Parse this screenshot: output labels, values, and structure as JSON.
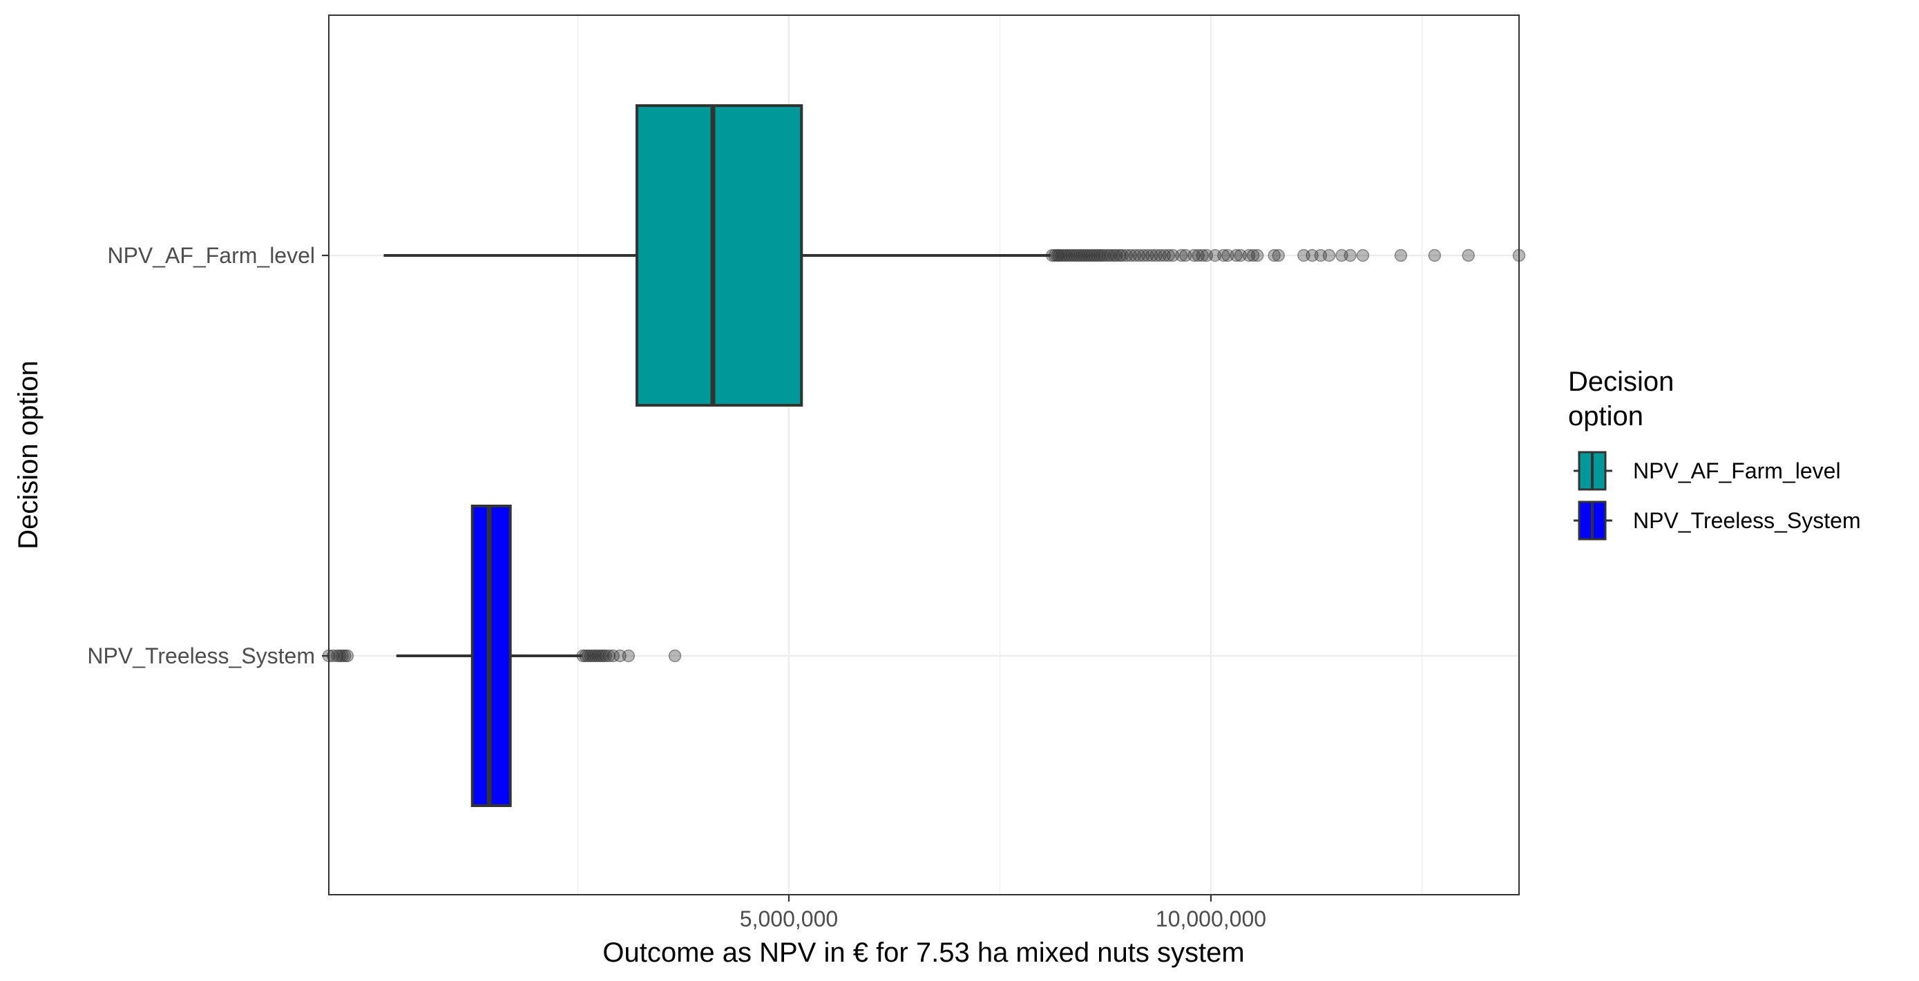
{
  "chart_data": {
    "type": "boxplot",
    "orientation": "horizontal",
    "xlabel": "Outcome as NPV in € for 7.53 ha mixed nuts system",
    "ylabel": "Decision option",
    "xlim": [
      -450000,
      13650000
    ],
    "x_ticks": [
      5000000,
      10000000
    ],
    "x_tick_labels": [
      "5,000,000",
      "10,000,000"
    ],
    "grid": true,
    "legend": {
      "title": "Decision option",
      "title_lines": [
        "Decision",
        "option"
      ],
      "position": "right",
      "entries": [
        {
          "label": "NPV_AF_Farm_level",
          "color": "#009999"
        },
        {
          "label": "NPV_Treeless_System",
          "color": "#0000FF"
        }
      ]
    },
    "categories": [
      "NPV_AF_Farm_level",
      "NPV_Treeless_System"
    ],
    "series": [
      {
        "name": "NPV_AF_Farm_level",
        "color": "#009999",
        "whisker_low": 200000,
        "q1": 3200000,
        "median": 4100000,
        "q3": 5150000,
        "whisker_high": 8100000,
        "outliers": [
          8120000,
          8150000,
          8180000,
          8200000,
          8230000,
          8260000,
          8290000,
          8320000,
          8350000,
          8380000,
          8410000,
          8440000,
          8470000,
          8500000,
          8530000,
          8560000,
          8590000,
          8620000,
          8650000,
          8680000,
          8710000,
          8740000,
          8780000,
          8810000,
          8850000,
          8880000,
          8920000,
          8950000,
          9000000,
          9050000,
          9100000,
          9150000,
          9200000,
          9250000,
          9300000,
          9350000,
          9400000,
          9450000,
          9500000,
          9550000,
          9650000,
          9700000,
          9800000,
          9850000,
          9900000,
          9950000,
          10050000,
          10150000,
          10200000,
          10300000,
          10350000,
          10450000,
          10500000,
          10550000,
          10750000,
          10800000,
          11100000,
          11200000,
          11300000,
          11400000,
          11550000,
          11650000,
          11800000,
          12250000,
          12650000,
          13050000,
          13650000
        ]
      },
      {
        "name": "NPV_Treeless_System",
        "color": "#0000FF",
        "whisker_low": 350000,
        "q1": 1250000,
        "median": 1450000,
        "q3": 1700000,
        "whisker_high": 2550000,
        "outliers": [
          -450000,
          -400000,
          -350000,
          -320000,
          -290000,
          -260000,
          -230000,
          2560000,
          2590000,
          2620000,
          2650000,
          2680000,
          2710000,
          2740000,
          2770000,
          2800000,
          2830000,
          2870000,
          2920000,
          3000000,
          3100000,
          3650000
        ]
      }
    ]
  }
}
